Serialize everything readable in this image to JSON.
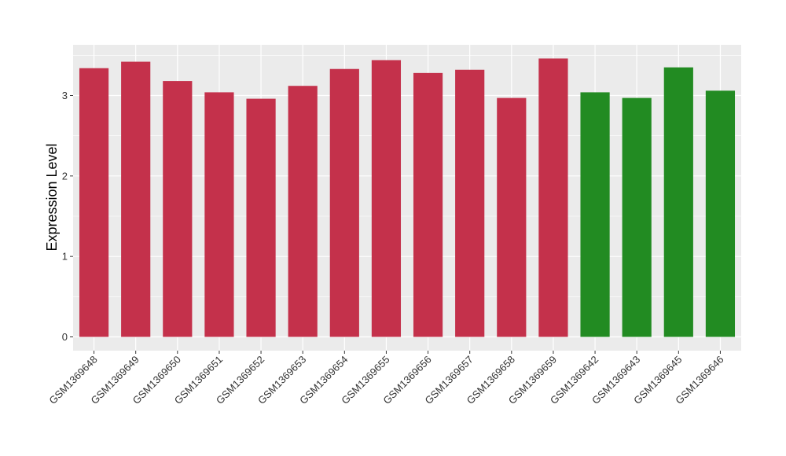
{
  "chart_data": {
    "type": "bar",
    "title": "",
    "xlabel": "",
    "ylabel": "Expression Level",
    "ylim": [
      0,
      3.55
    ],
    "yticks": [
      0,
      1,
      2,
      3
    ],
    "grid": true,
    "legend": "none",
    "categories": [
      "GSM1369648",
      "GSM1369649",
      "GSM1369650",
      "GSM1369651",
      "GSM1369652",
      "GSM1369653",
      "GSM1369654",
      "GSM1369655",
      "GSM1369656",
      "GSM1369657",
      "GSM1369658",
      "GSM1369659",
      "GSM1369642",
      "GSM1369643",
      "GSM1369645",
      "GSM1369646"
    ],
    "values": [
      3.34,
      3.42,
      3.18,
      3.04,
      2.96,
      3.12,
      3.33,
      3.44,
      3.28,
      3.32,
      2.97,
      3.46,
      3.04,
      2.97,
      3.35,
      3.06
    ],
    "bar_colors": [
      "#c4314b",
      "#c4314b",
      "#c4314b",
      "#c4314b",
      "#c4314b",
      "#c4314b",
      "#c4314b",
      "#c4314b",
      "#c4314b",
      "#c4314b",
      "#c4314b",
      "#c4314b",
      "#228b22",
      "#228b22",
      "#228b22",
      "#228b22"
    ],
    "panel_background": "#ebebeb",
    "grid_color": "#ffffff"
  }
}
